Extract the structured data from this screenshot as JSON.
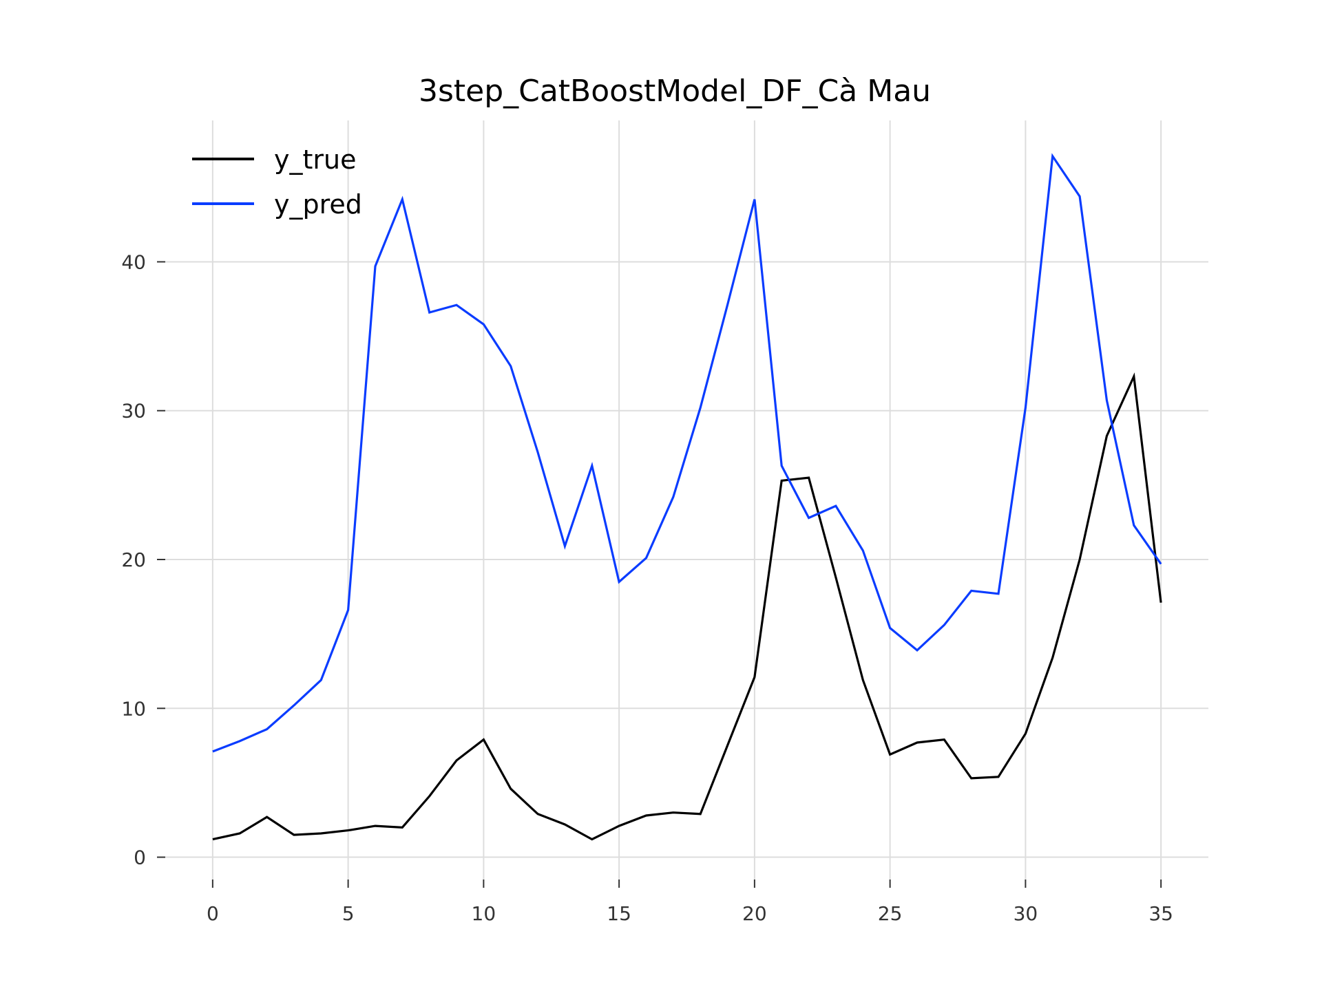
{
  "chart_data": {
    "type": "line",
    "title": "3step_CatBoostModel_DF_Cà Mau",
    "xlabel": "",
    "ylabel": "",
    "xlim": [
      -1.75,
      36.75
    ],
    "ylim": [
      -1.5,
      49.5
    ],
    "grid": true,
    "legend_position": "top-left",
    "x_ticks": [
      0,
      5,
      10,
      15,
      20,
      25,
      30,
      35
    ],
    "x_tick_labels": [
      "0",
      "5",
      "10",
      "15",
      "20",
      "25",
      "30",
      "35"
    ],
    "y_ticks": [
      0,
      10,
      20,
      30,
      40
    ],
    "y_tick_labels": [
      "0",
      "10",
      "20",
      "30",
      "40"
    ],
    "x": [
      0,
      1,
      2,
      3,
      4,
      5,
      6,
      7,
      8,
      9,
      10,
      11,
      12,
      13,
      14,
      15,
      16,
      17,
      18,
      19,
      20,
      21,
      22,
      23,
      24,
      25,
      26,
      27,
      28,
      29,
      30,
      31,
      32,
      33,
      34,
      35
    ],
    "series": [
      {
        "name": "y_true",
        "color": "#000000",
        "values": [
          1.2,
          1.6,
          2.7,
          1.5,
          1.6,
          1.8,
          2.1,
          2.0,
          4.1,
          6.5,
          7.9,
          4.6,
          2.9,
          2.2,
          1.2,
          2.1,
          2.8,
          3.0,
          2.9,
          7.5,
          12.1,
          25.3,
          25.5,
          18.8,
          11.9,
          6.9,
          7.7,
          7.9,
          5.3,
          5.4,
          8.3,
          13.4,
          20.0,
          28.3,
          32.3,
          17.1
        ]
      },
      {
        "name": "y_pred",
        "color": "#0a3cff",
        "values": [
          7.1,
          7.8,
          8.6,
          10.2,
          11.9,
          16.6,
          39.7,
          44.2,
          36.6,
          37.1,
          35.8,
          33.0,
          27.2,
          20.9,
          26.3,
          18.5,
          20.1,
          24.2,
          30.2,
          37.1,
          44.2,
          26.3,
          22.8,
          23.6,
          20.6,
          15.4,
          13.9,
          15.6,
          17.9,
          17.7,
          30.2,
          47.1,
          44.4,
          30.7,
          22.3,
          19.7
        ]
      }
    ]
  }
}
